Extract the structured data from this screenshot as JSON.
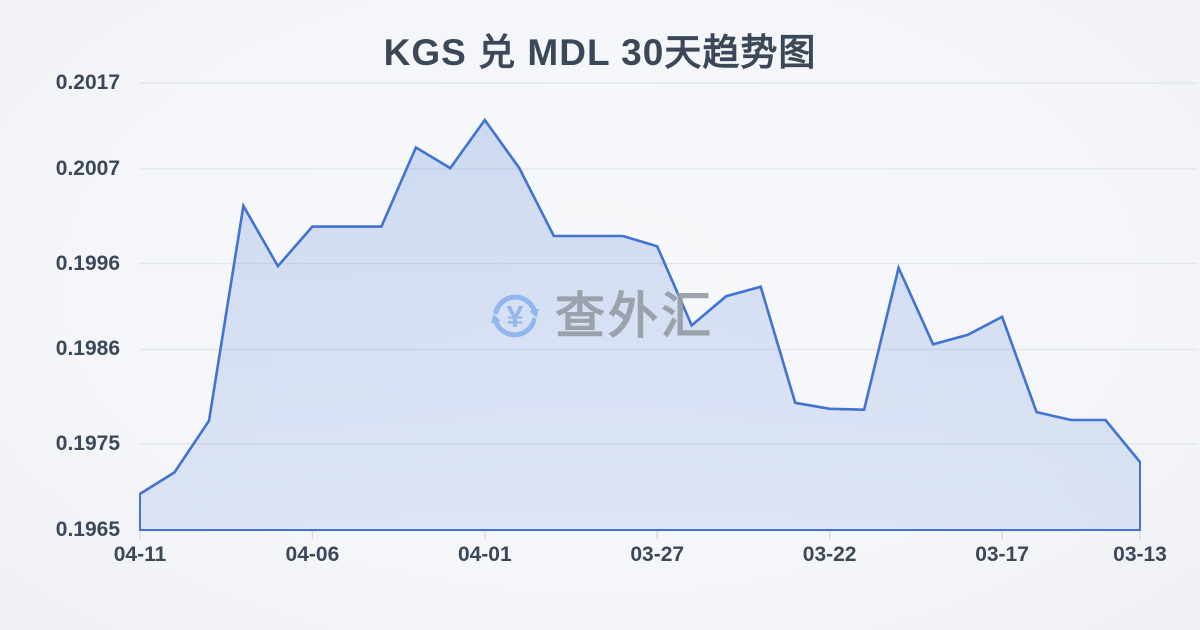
{
  "title": "KGS 兑 MDL 30天趋势图",
  "watermark": {
    "icon": "currency-exchange-icon",
    "currency_symbol": "¥",
    "text": "查外汇"
  },
  "colors": {
    "background": "#f4f6f9",
    "title_text": "#3c4858",
    "axis_text": "#3c4858",
    "line": "#4173d2",
    "area_fill_top": "rgba(65,115,210,0.22)",
    "area_fill_bottom": "rgba(65,115,210,0.13)",
    "gridline": "#e4e7ed",
    "tick": "#d8dbe2",
    "watermark_text": "#989da6",
    "watermark_icon": "#93b6ee"
  },
  "chart_data": {
    "type": "area",
    "title": "KGS 兑 MDL 30天趋势图",
    "x": [
      "04-11",
      "04-10",
      "04-09",
      "04-08",
      "04-07",
      "04-06",
      "04-05",
      "04-04",
      "04-03",
      "04-02",
      "04-01",
      "03-31",
      "03-30",
      "03-29",
      "03-28",
      "03-27",
      "03-26",
      "03-25",
      "03-24",
      "03-23",
      "03-22",
      "03-21",
      "03-20",
      "03-19",
      "03-18",
      "03-17",
      "03-16",
      "03-15",
      "03-14",
      "03-13"
    ],
    "series": [
      {
        "name": "KGS/MDL",
        "values": [
          0.19692,
          0.19717,
          0.19777,
          0.20027,
          0.19957,
          0.20003,
          0.20003,
          0.20003,
          0.20095,
          0.20071,
          0.20127,
          0.20071,
          0.19992,
          0.19992,
          0.19992,
          0.1998,
          0.19888,
          0.19922,
          0.19933,
          0.19798,
          0.19791,
          0.1979,
          0.19955,
          0.19866,
          0.19877,
          0.19898,
          0.19787,
          0.19778,
          0.19778,
          0.19729
        ]
      }
    ],
    "y_ticks": [
      "0.2017",
      "0.2007",
      "0.1996",
      "0.1986",
      "0.1975",
      "0.1965"
    ],
    "x_ticks": [
      "04-11",
      "04-06",
      "04-01",
      "03-27",
      "03-22",
      "03-17",
      "03-13"
    ],
    "ylim": [
      0.1965,
      0.2017
    ],
    "xlabel": "",
    "ylabel": "",
    "grid": "horizontal-only",
    "legend": "none",
    "note": "dates run newest (04-11) to oldest (03-13) left to right"
  }
}
